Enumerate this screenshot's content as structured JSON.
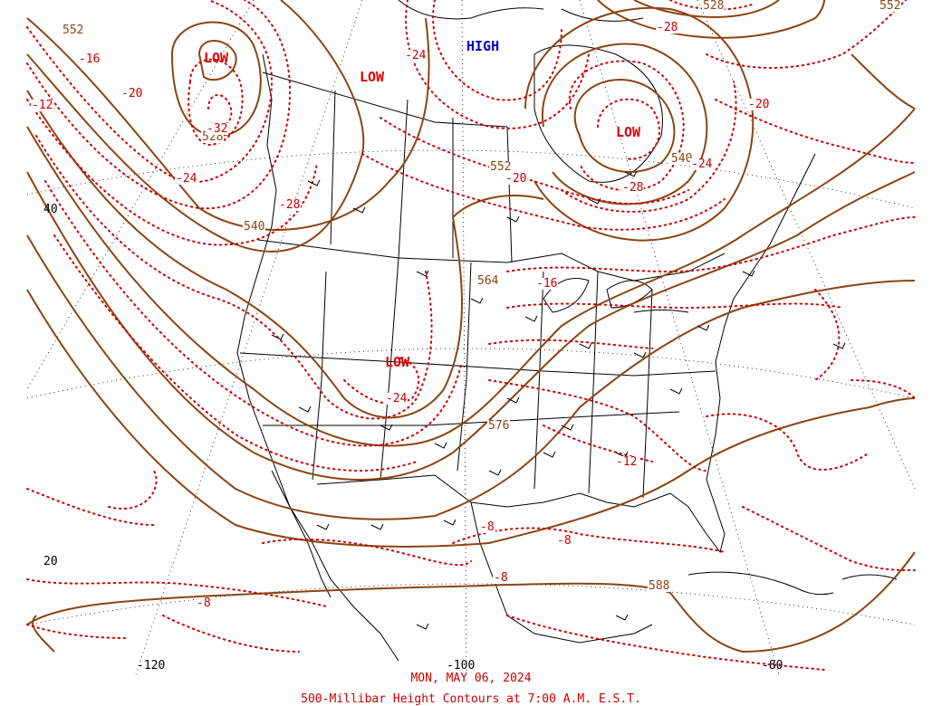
{
  "caption": {
    "date": "MON, MAY 06, 2024",
    "title": "500-Millibar Height Contours at 7:00 A.M. E.S.T."
  },
  "centers": [
    {
      "type": "low",
      "text": "LOW"
    },
    {
      "type": "low",
      "text": "LOW"
    },
    {
      "type": "high",
      "text": "HIGH"
    },
    {
      "type": "low",
      "text": "LOW"
    },
    {
      "type": "low",
      "text": "LOW"
    }
  ],
  "height_labels": [
    "552",
    "528",
    "540",
    "552",
    "540",
    "564",
    "576",
    "588",
    "528",
    "552"
  ],
  "temp_labels": [
    "-16",
    "-12",
    "-20",
    "-32",
    "-24",
    "-28",
    "-24",
    "-20",
    "-28",
    "-28",
    "-24",
    "-20",
    "-16",
    "-24",
    "-12",
    "-8",
    "-8",
    "-8",
    "-8"
  ],
  "axis_labels": {
    "lat": [
      "40",
      "20"
    ],
    "lon": [
      "-120",
      "-100",
      "-80"
    ]
  },
  "colors": {
    "height_contour": "#8b4513",
    "temp_contour": "#cc0000",
    "boundaries": "#000000",
    "low": "#dd0000",
    "high": "#0000cc"
  }
}
